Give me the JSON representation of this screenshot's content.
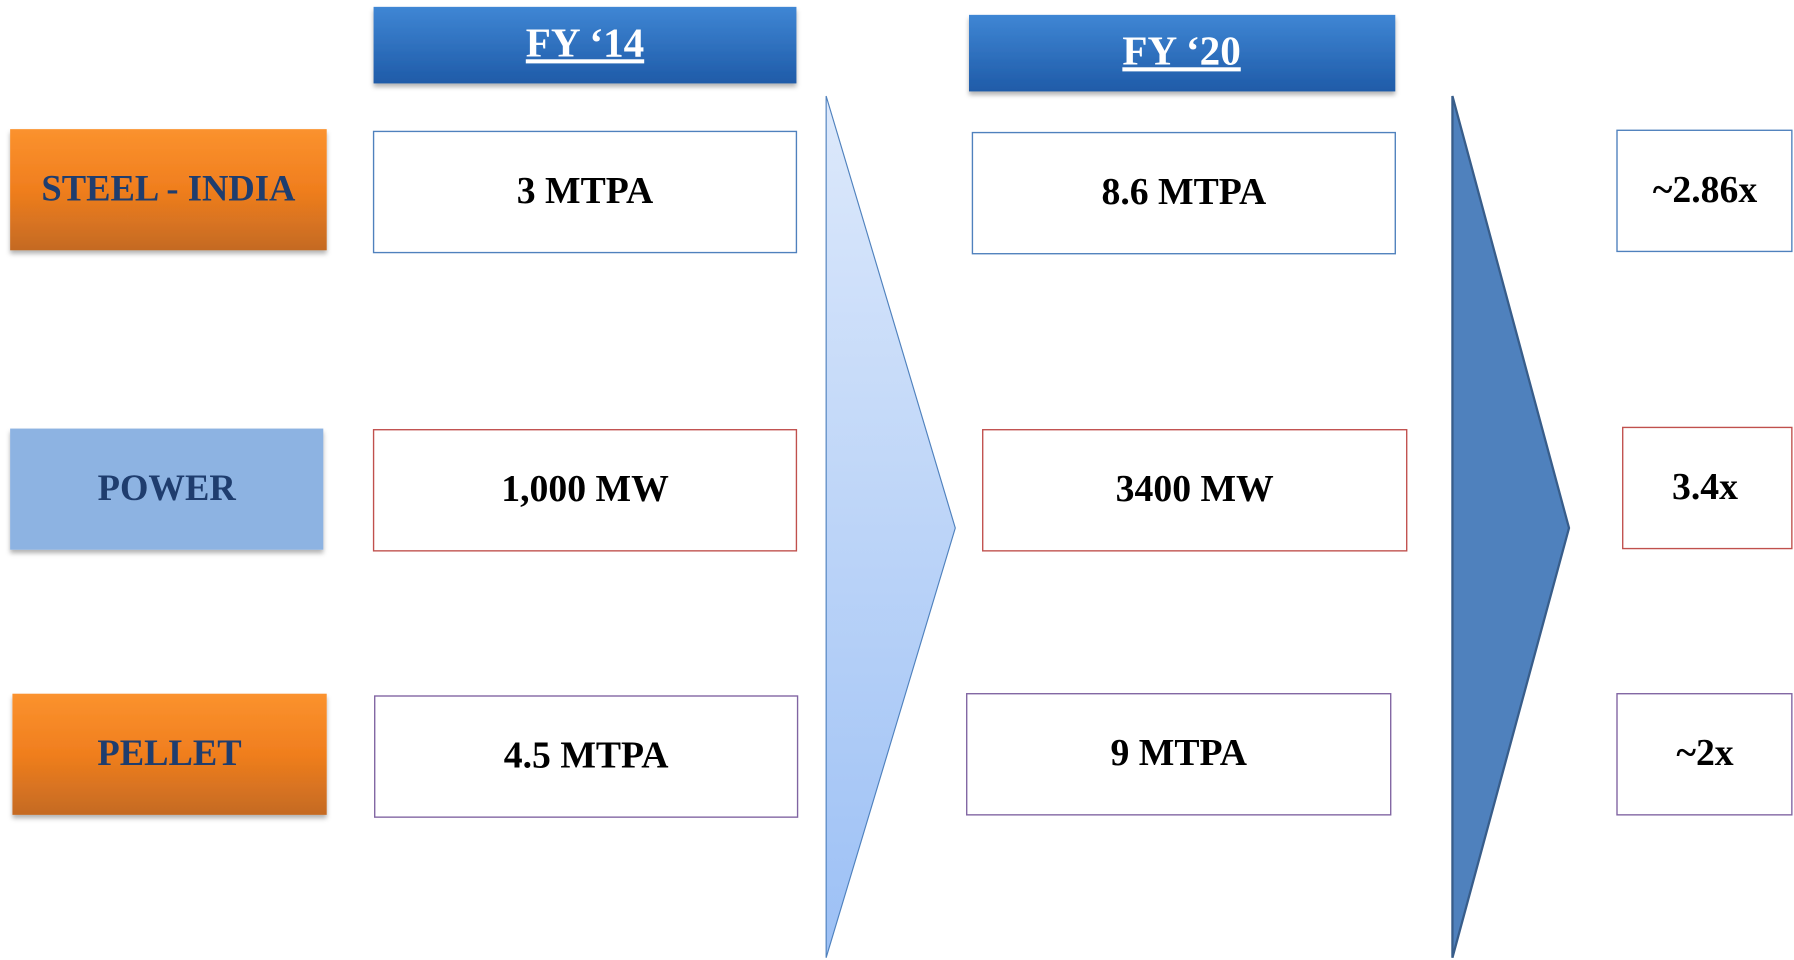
{
  "headers": {
    "fy14": "FY ‘14",
    "fy20": "FY ‘20"
  },
  "rows": [
    {
      "label": "STEEL - INDIA",
      "fy14": "3 MTPA",
      "fy20": "8.6 MTPA",
      "growth": "~2.86x"
    },
    {
      "label": "POWER",
      "fy14": "1,000 MW",
      "fy20": "3400 MW",
      "growth": "3.4x"
    },
    {
      "label": "PELLET",
      "fy14": "4.5 MTPA",
      "fy20": "9 MTPA",
      "growth": "~2x"
    }
  ]
}
